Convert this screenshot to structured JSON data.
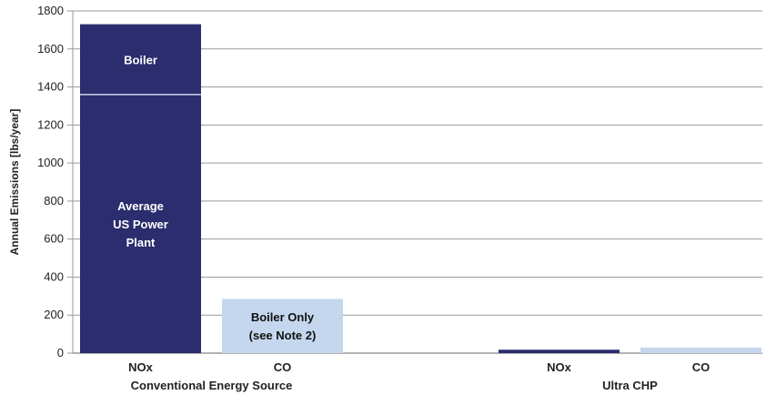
{
  "chart_data": {
    "type": "bar",
    "title": "",
    "ylabel": "Annual Emissions [lbs/year]",
    "ylim": [
      0,
      1800
    ],
    "yticks": [
      0,
      200,
      400,
      600,
      800,
      1000,
      1200,
      1400,
      1600,
      1800
    ],
    "grid": true,
    "colors": {
      "nox": "#2b2d6e",
      "co": "#c5d7ee",
      "divider": "#d0d4ea",
      "grid": "#9a9a9a"
    },
    "groups": [
      {
        "name": "Conventional Energy Source",
        "bars": [
          {
            "category": "NOx",
            "segments": [
              {
                "label_lines": [
                  "Average",
                  "US Power",
                  "Plant"
                ],
                "value": 1360
              },
              {
                "label_lines": [
                  "Boiler"
                ],
                "value": 370
              }
            ],
            "total": 1730
          },
          {
            "category": "CO",
            "segments": [
              {
                "label_lines": [
                  "Boiler Only",
                  "(see Note 2)"
                ],
                "value": 285
              }
            ],
            "total": 285
          }
        ]
      },
      {
        "name": "Ultra CHP",
        "bars": [
          {
            "category": "NOx",
            "segments": [
              {
                "label_lines": [],
                "value": 18
              }
            ],
            "total": 18
          },
          {
            "category": "CO",
            "segments": [
              {
                "label_lines": [],
                "value": 30
              }
            ],
            "total": 30
          }
        ]
      }
    ]
  }
}
